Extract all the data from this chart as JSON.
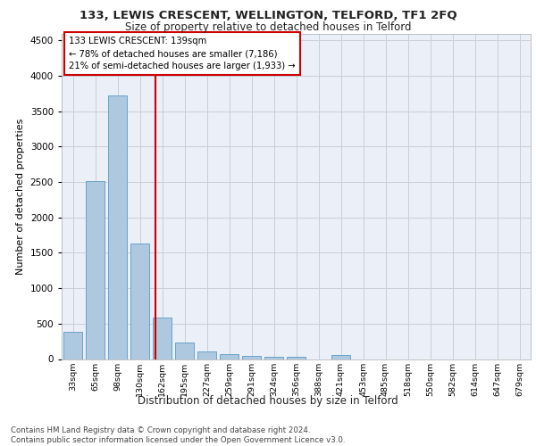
{
  "title1": "133, LEWIS CRESCENT, WELLINGTON, TELFORD, TF1 2FQ",
  "title2": "Size of property relative to detached houses in Telford",
  "xlabel": "Distribution of detached houses by size in Telford",
  "ylabel": "Number of detached properties",
  "categories": [
    "33sqm",
    "65sqm",
    "98sqm",
    "130sqm",
    "162sqm",
    "195sqm",
    "227sqm",
    "259sqm",
    "291sqm",
    "324sqm",
    "356sqm",
    "388sqm",
    "421sqm",
    "453sqm",
    "485sqm",
    "518sqm",
    "550sqm",
    "582sqm",
    "614sqm",
    "647sqm",
    "679sqm"
  ],
  "values": [
    380,
    2510,
    3720,
    1630,
    590,
    235,
    108,
    65,
    42,
    30,
    35,
    0,
    55,
    0,
    0,
    0,
    0,
    0,
    0,
    0,
    0
  ],
  "bar_color": "#aec8e0",
  "bar_edge_color": "#5a9ac5",
  "vline_color": "#cc0000",
  "ylim": [
    0,
    4600
  ],
  "yticks": [
    0,
    500,
    1000,
    1500,
    2000,
    2500,
    3000,
    3500,
    4000,
    4500
  ],
  "annotation_line1": "133 LEWIS CRESCENT: 139sqm",
  "annotation_line2": "← 78% of detached houses are smaller (7,186)",
  "annotation_line3": "21% of semi-detached houses are larger (1,933) →",
  "annotation_box_color": "#ffffff",
  "annotation_box_edge": "#cc0000",
  "footer": "Contains HM Land Registry data © Crown copyright and database right 2024.\nContains public sector information licensed under the Open Government Licence v3.0.",
  "axes_bg_color": "#eaeff8"
}
